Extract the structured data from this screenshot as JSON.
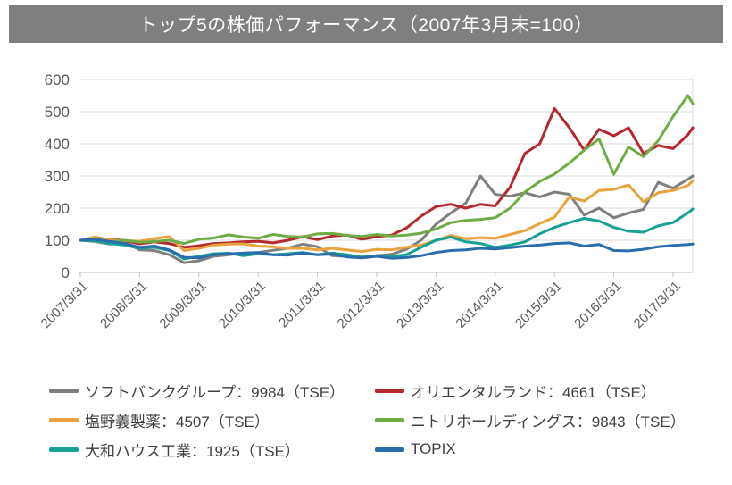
{
  "title": "トップ5の株価パフォーマンス（2007年3月末=100）",
  "colors": {
    "title_bar_bg": "#7f7f7f",
    "title_text": "#ffffff",
    "gridline": "#d9d9d9",
    "axis_line": "#bfbfbf",
    "tick_label": "#595959",
    "legend_text": "#404040"
  },
  "chart_data": {
    "type": "line",
    "title": "トップ5の株価パフォーマンス（2007年3月末=100）",
    "ylim": [
      0,
      600
    ],
    "y_ticks": [
      0,
      100,
      200,
      300,
      400,
      500,
      600
    ],
    "x_tick_labels": [
      "2007/3/31",
      "2008/3/31",
      "2009/3/31",
      "2010/3/31",
      "2011/3/31",
      "2012/3/31",
      "2013/3/31",
      "2014/3/31",
      "2015/3/31",
      "2016/3/31",
      "2017/3/31"
    ],
    "grid": "horizontal",
    "legend_position": "bottom",
    "baseline_value": 100,
    "dates": [
      "2007/3",
      "2007/6",
      "2007/9",
      "2007/12",
      "2008/3",
      "2008/6",
      "2008/9",
      "2008/12",
      "2009/3",
      "2009/6",
      "2009/9",
      "2009/12",
      "2010/3",
      "2010/6",
      "2010/9",
      "2010/12",
      "2011/3",
      "2011/6",
      "2011/9",
      "2011/12",
      "2012/3",
      "2012/6",
      "2012/9",
      "2012/12",
      "2013/3",
      "2013/6",
      "2013/9",
      "2013/12",
      "2014/3",
      "2014/6",
      "2014/9",
      "2014/12",
      "2015/3",
      "2015/6",
      "2015/9",
      "2015/12",
      "2016/3",
      "2016/6",
      "2016/9",
      "2016/12",
      "2017/3",
      "2017/6",
      "2017/7"
    ],
    "months_from_start": [
      0,
      3,
      6,
      9,
      12,
      15,
      18,
      21,
      24,
      27,
      30,
      33,
      36,
      39,
      42,
      45,
      48,
      51,
      54,
      57,
      60,
      63,
      66,
      69,
      72,
      75,
      78,
      81,
      84,
      87,
      90,
      93,
      96,
      99,
      102,
      105,
      108,
      111,
      114,
      117,
      120,
      123,
      124
    ],
    "series": [
      {
        "name": "ソフトバンクグループ：9984（TSE）",
        "color": "#7f7f7f",
        "values": [
          100,
          96,
          88,
          94,
          70,
          68,
          55,
          30,
          36,
          50,
          55,
          60,
          62,
          69,
          75,
          88,
          80,
          52,
          50,
          48,
          52,
          56,
          72,
          100,
          150,
          185,
          215,
          300,
          243,
          237,
          248,
          235,
          250,
          243,
          178,
          200,
          170,
          185,
          196,
          280,
          262,
          290,
          300
        ]
      },
      {
        "name": "オリエンタルランド：4661（TSE）",
        "color": "#b5282e",
        "values": [
          100,
          101,
          104,
          99,
          89,
          95,
          90,
          78,
          83,
          90,
          92,
          95,
          97,
          92,
          100,
          111,
          102,
          113,
          116,
          103,
          111,
          116,
          138,
          175,
          205,
          212,
          200,
          212,
          207,
          265,
          370,
          400,
          510,
          450,
          380,
          445,
          425,
          450,
          370,
          395,
          385,
          428,
          450
        ]
      },
      {
        "name": "塩野義製薬：4507（TSE）",
        "color": "#e8a33d",
        "values": [
          100,
          110,
          101,
          99,
          97,
          105,
          111,
          68,
          75,
          85,
          88,
          89,
          82,
          80,
          75,
          75,
          70,
          75,
          70,
          65,
          72,
          70,
          78,
          85,
          100,
          115,
          105,
          108,
          106,
          118,
          130,
          152,
          172,
          235,
          222,
          255,
          258,
          272,
          220,
          248,
          255,
          270,
          285
        ]
      },
      {
        "name": "ニトリホールディングス：9843（TSE）",
        "color": "#6fac46",
        "values": [
          100,
          101,
          95,
          100,
          94,
          96,
          100,
          90,
          103,
          107,
          117,
          110,
          106,
          118,
          112,
          110,
          120,
          121,
          115,
          112,
          118,
          113,
          116,
          122,
          135,
          155,
          162,
          165,
          170,
          200,
          250,
          283,
          306,
          340,
          380,
          415,
          305,
          390,
          360,
          410,
          485,
          550,
          525
        ]
      },
      {
        "name": "大和ハウス工業：1925（TSE）",
        "color": "#17a195",
        "values": [
          100,
          98,
          90,
          85,
          75,
          78,
          68,
          42,
          50,
          58,
          60,
          52,
          58,
          55,
          58,
          62,
          55,
          60,
          55,
          47,
          52,
          50,
          55,
          78,
          100,
          110,
          95,
          90,
          78,
          85,
          95,
          120,
          140,
          155,
          168,
          160,
          140,
          128,
          125,
          145,
          155,
          185,
          197
        ]
      },
      {
        "name": "TOPIX",
        "color": "#2a6dad",
        "values": [
          100,
          103,
          96,
          90,
          78,
          82,
          70,
          47,
          45,
          55,
          58,
          60,
          62,
          55,
          54,
          60,
          55,
          57,
          48,
          45,
          50,
          44,
          46,
          52,
          62,
          68,
          70,
          75,
          73,
          77,
          82,
          85,
          90,
          92,
          82,
          87,
          68,
          67,
          72,
          80,
          84,
          87,
          88
        ]
      }
    ]
  }
}
